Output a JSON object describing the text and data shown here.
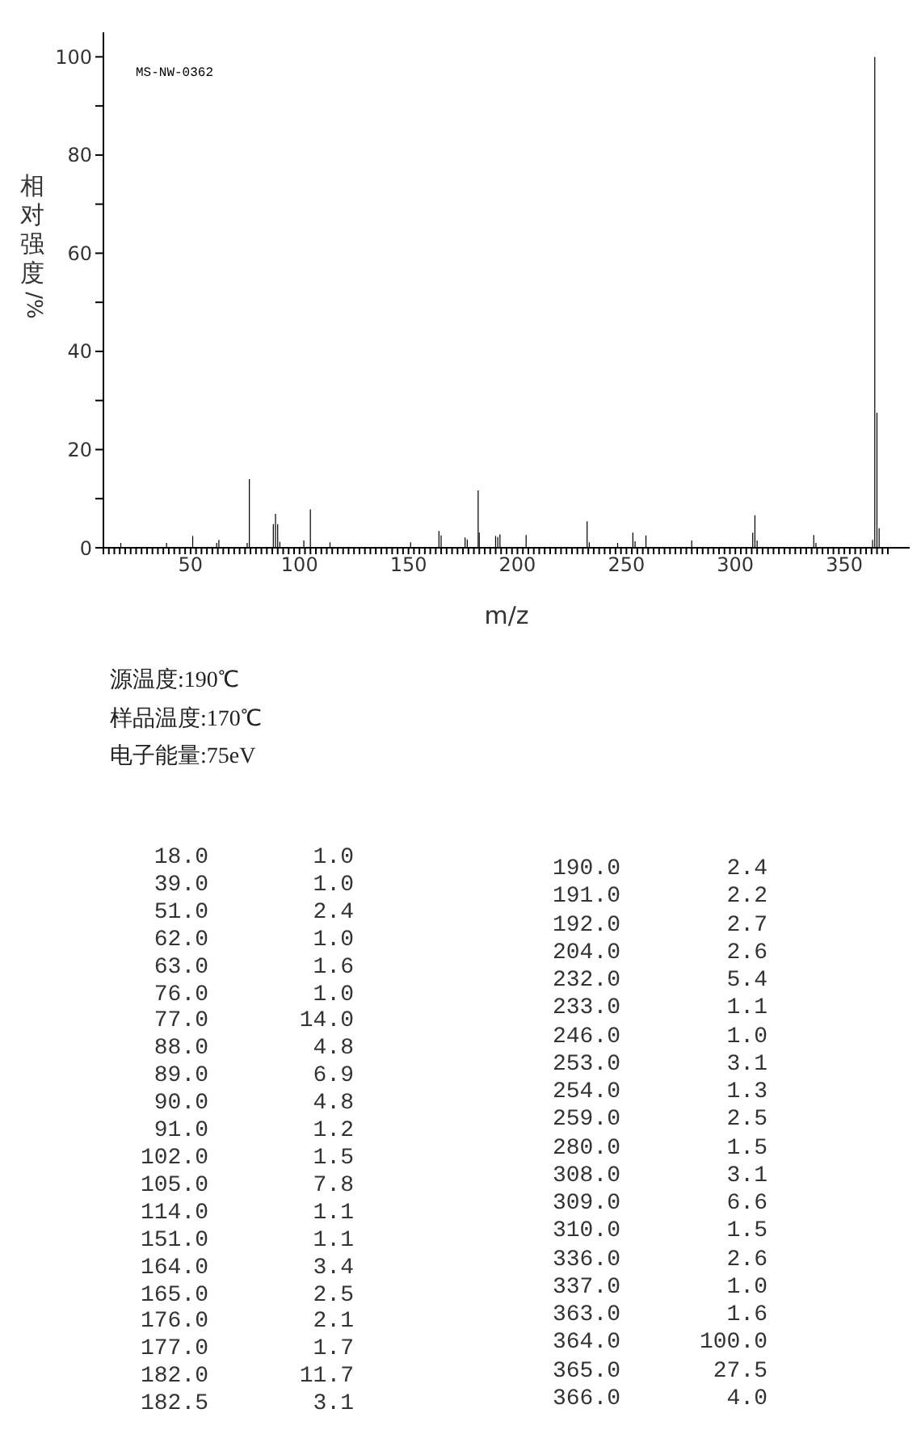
{
  "chart_data": [
    {
      "type": "bar",
      "xlabel": "m/z",
      "ylabel": "相对强度/%",
      "color": "#000000",
      "x": [
        18,
        39,
        51,
        62,
        63,
        76,
        77,
        88,
        89,
        90,
        91,
        102,
        105,
        114,
        151,
        164,
        165,
        176,
        177,
        182,
        182.5,
        190,
        191,
        192,
        204,
        232,
        233,
        246,
        253,
        254,
        259,
        280,
        308,
        309,
        310,
        336,
        337,
        363,
        364,
        365,
        366
      ],
      "values": [
        1.0,
        1.0,
        2.4,
        1.0,
        1.6,
        1.0,
        14.0,
        4.8,
        6.9,
        4.8,
        1.2,
        1.5,
        7.8,
        1.1,
        1.1,
        3.4,
        2.5,
        2.1,
        1.7,
        11.7,
        3.1,
        2.4,
        2.2,
        2.7,
        2.6,
        5.4,
        1.1,
        1.0,
        3.1,
        1.3,
        2.5,
        1.5,
        3.1,
        6.6,
        1.5,
        2.6,
        1.0,
        1.6,
        100.0,
        27.5,
        4.0
      ],
      "xlim": [
        10,
        380
      ],
      "xticks": [
        {
          "value": 10,
          "label": null
        },
        {
          "value": 12.5,
          "label": null
        },
        {
          "value": 15,
          "label": null
        },
        {
          "value": 17.5,
          "label": null
        },
        {
          "value": 20,
          "label": null
        },
        {
          "value": 22.5,
          "label": null
        },
        {
          "value": 25,
          "label": null
        },
        {
          "value": 27.5,
          "label": null
        },
        {
          "value": 30,
          "label": null
        },
        {
          "value": 32.5,
          "label": null
        },
        {
          "value": 35,
          "label": null
        },
        {
          "value": 37.5,
          "label": null
        },
        {
          "value": 40,
          "label": null
        },
        {
          "value": 42.5,
          "label": null
        },
        {
          "value": 45,
          "label": null
        },
        {
          "value": 47.5,
          "label": null
        },
        50,
        {
          "value": 52.5,
          "label": null
        },
        {
          "value": 55,
          "label": null
        },
        {
          "value": 57.5,
          "label": null
        },
        {
          "value": 60,
          "label": null
        },
        {
          "value": 62.5,
          "label": null
        },
        {
          "value": 65,
          "label": null
        },
        {
          "value": 67.5,
          "label": null
        },
        {
          "value": 70,
          "label": null
        },
        {
          "value": 72.5,
          "label": null
        },
        {
          "value": 75,
          "label": null
        },
        {
          "value": 77.5,
          "label": null
        },
        {
          "value": 80,
          "label": null
        },
        {
          "value": 82.5,
          "label": null
        },
        {
          "value": 85,
          "label": null
        },
        {
          "value": 87.5,
          "label": null
        },
        {
          "value": 90,
          "label": null
        },
        {
          "value": 92.5,
          "label": null
        },
        {
          "value": 95,
          "label": null
        },
        {
          "value": 97.5,
          "label": null
        },
        100,
        {
          "value": 102.5,
          "label": null
        },
        {
          "value": 105,
          "label": null
        },
        {
          "value": 107.5,
          "label": null
        },
        {
          "value": 110,
          "label": null
        },
        {
          "value": 112.5,
          "label": null
        },
        {
          "value": 115,
          "label": null
        },
        {
          "value": 117.5,
          "label": null
        },
        {
          "value": 120,
          "label": null
        },
        {
          "value": 122.5,
          "label": null
        },
        {
          "value": 125,
          "label": null
        },
        {
          "value": 127.5,
          "label": null
        },
        {
          "value": 130,
          "label": null
        },
        {
          "value": 132.5,
          "label": null
        },
        {
          "value": 135,
          "label": null
        },
        {
          "value": 137.5,
          "label": null
        },
        {
          "value": 140,
          "label": null
        },
        {
          "value": 142.5,
          "label": null
        },
        {
          "value": 145,
          "label": null
        },
        {
          "value": 147.5,
          "label": null
        },
        150,
        {
          "value": 152.5,
          "label": null
        },
        {
          "value": 155,
          "label": null
        },
        {
          "value": 157.5,
          "label": null
        },
        {
          "value": 160,
          "label": null
        },
        {
          "value": 162.5,
          "label": null
        },
        {
          "value": 165,
          "label": null
        },
        {
          "value": 167.5,
          "label": null
        },
        {
          "value": 170,
          "label": null
        },
        {
          "value": 172.5,
          "label": null
        },
        {
          "value": 175,
          "label": null
        },
        {
          "value": 177.5,
          "label": null
        },
        {
          "value": 180,
          "label": null
        },
        {
          "value": 182.5,
          "label": null
        },
        {
          "value": 185,
          "label": null
        },
        {
          "value": 187.5,
          "label": null
        },
        {
          "value": 190,
          "label": null
        },
        {
          "value": 192.5,
          "label": null
        },
        {
          "value": 195,
          "label": null
        },
        {
          "value": 197.5,
          "label": null
        },
        200,
        {
          "value": 202.5,
          "label": null
        },
        {
          "value": 205,
          "label": null
        },
        {
          "value": 207.5,
          "label": null
        },
        {
          "value": 210,
          "label": null
        },
        {
          "value": 212.5,
          "label": null
        },
        {
          "value": 215,
          "label": null
        },
        {
          "value": 217.5,
          "label": null
        },
        {
          "value": 220,
          "label": null
        },
        {
          "value": 222.5,
          "label": null
        },
        {
          "value": 225,
          "label": null
        },
        {
          "value": 227.5,
          "label": null
        },
        {
          "value": 230,
          "label": null
        },
        {
          "value": 232.5,
          "label": null
        },
        {
          "value": 235,
          "label": null
        },
        {
          "value": 237.5,
          "label": null
        },
        {
          "value": 240,
          "label": null
        },
        {
          "value": 242.5,
          "label": null
        },
        {
          "value": 245,
          "label": null
        },
        {
          "value": 247.5,
          "label": null
        },
        250,
        {
          "value": 252.5,
          "label": null
        },
        {
          "value": 255,
          "label": null
        },
        {
          "value": 257.5,
          "label": null
        },
        {
          "value": 260,
          "label": null
        },
        {
          "value": 262.5,
          "label": null
        },
        {
          "value": 265,
          "label": null
        },
        {
          "value": 267.5,
          "label": null
        },
        {
          "value": 270,
          "label": null
        },
        {
          "value": 272.5,
          "label": null
        },
        {
          "value": 275,
          "label": null
        },
        {
          "value": 277.5,
          "label": null
        },
        {
          "value": 280,
          "label": null
        },
        {
          "value": 282.5,
          "label": null
        },
        {
          "value": 285,
          "label": null
        },
        {
          "value": 287.5,
          "label": null
        },
        {
          "value": 290,
          "label": null
        },
        {
          "value": 292.5,
          "label": null
        },
        {
          "value": 295,
          "label": null
        },
        {
          "value": 297.5,
          "label": null
        },
        300,
        {
          "value": 302.5,
          "label": null
        },
        {
          "value": 305,
          "label": null
        },
        {
          "value": 307.5,
          "label": null
        },
        {
          "value": 310,
          "label": null
        },
        {
          "value": 312.5,
          "label": null
        },
        {
          "value": 315,
          "label": null
        },
        {
          "value": 317.5,
          "label": null
        },
        {
          "value": 320,
          "label": null
        },
        {
          "value": 322.5,
          "label": null
        },
        {
          "value": 325,
          "label": null
        },
        {
          "value": 327.5,
          "label": null
        },
        {
          "value": 330,
          "label": null
        },
        {
          "value": 332.5,
          "label": null
        },
        {
          "value": 335,
          "label": null
        },
        {
          "value": 337.5,
          "label": null
        },
        {
          "value": 340,
          "label": null
        },
        {
          "value": 342.5,
          "label": null
        },
        {
          "value": 345,
          "label": null
        },
        {
          "value": 347.5,
          "label": null
        },
        350,
        {
          "value": 352.5,
          "label": null
        },
        {
          "value": 355,
          "label": null
        },
        {
          "value": 357.5,
          "label": null
        },
        {
          "value": 360,
          "label": null
        },
        {
          "value": 362.5,
          "label": null
        },
        {
          "value": 365,
          "label": null
        },
        {
          "value": 367.5,
          "label": null
        },
        {
          "value": 370,
          "label": null
        }
      ],
      "ylim": [
        0,
        105
      ],
      "yticks": [
        0,
        {
          "value": 10,
          "label": null
        },
        20,
        {
          "value": 30,
          "label": null
        },
        40,
        {
          "value": 50,
          "label": null
        },
        60,
        {
          "value": 70,
          "label": null
        },
        80,
        {
          "value": 90,
          "label": null
        },
        100
      ],
      "annotations": [
        "MS-NW-0362",
        "源温度:190℃",
        "样品温度:170℃",
        "电子能量:75eV"
      ]
    },
    {
      "type": "other",
      "categories": [
        "18.0",
        "39.0",
        "51.0",
        "62.0",
        "63.0",
        "76.0",
        "77.0",
        "88.0",
        "89.0",
        "90.0",
        "91.0",
        "102.0",
        "105.0",
        "114.0",
        "151.0",
        "164.0",
        "165.0",
        "176.0",
        "177.0",
        "182.0",
        "182.5",
        "190.0",
        "191.0",
        "192.0",
        "204.0",
        "232.0",
        "233.0",
        "246.0",
        "253.0",
        "254.0",
        "259.0",
        "280.0",
        "308.0",
        "309.0",
        "310.0",
        "336.0",
        "337.0",
        "363.0",
        "364.0",
        "365.0",
        "366.0"
      ],
      "values": [
        1.0,
        1.0,
        2.4,
        1.0,
        1.6,
        1.0,
        14.0,
        4.8,
        6.9,
        4.8,
        1.2,
        1.5,
        7.8,
        1.1,
        1.1,
        3.4,
        2.5,
        2.1,
        1.7,
        11.7,
        3.1,
        2.4,
        2.2,
        2.7,
        2.6,
        5.4,
        1.1,
        1.0,
        3.1,
        1.3,
        2.5,
        1.5,
        3.1,
        6.6,
        1.5,
        2.6,
        1.0,
        1.6,
        100.0,
        27.5,
        4.0
      ],
      "value_labels": [
        "1.0",
        "1.0",
        "2.4",
        "1.0",
        "1.6",
        "1.0",
        "14.0",
        "4.8",
        "6.9",
        "4.8",
        "1.2",
        "1.5",
        "7.8",
        "1.1",
        "1.1",
        "3.4",
        "2.5",
        "2.1",
        "1.7",
        "11.7",
        "3.1",
        "2.4",
        "2.2",
        "2.7",
        "2.6",
        "5.4",
        "1.1",
        "1.0",
        "3.1",
        "1.3",
        "2.5",
        "1.5",
        "3.1",
        "6.6",
        "1.5",
        "2.6",
        "1.0",
        "1.6",
        "100.0",
        "27.5",
        "4.0"
      ]
    }
  ]
}
